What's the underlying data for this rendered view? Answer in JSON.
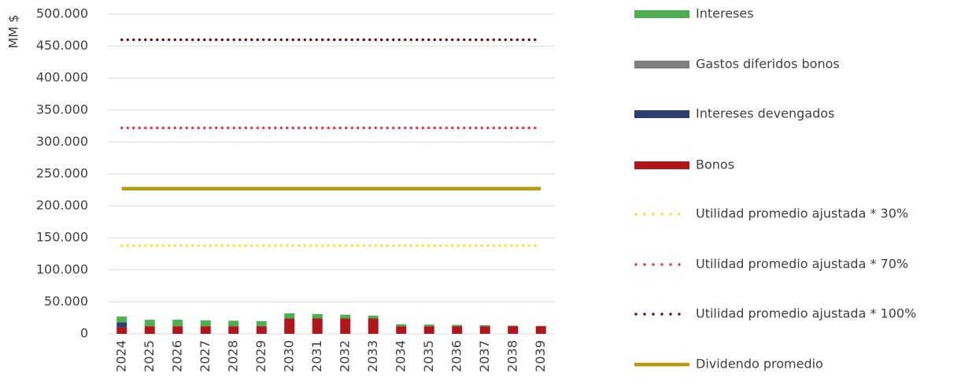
{
  "chart_data": {
    "type": "bar",
    "y_label": "MM $",
    "categories": [
      "2024",
      "2025",
      "2026",
      "2027",
      "2028",
      "2029",
      "2030",
      "2031",
      "2032",
      "2033",
      "2034",
      "2035",
      "2036",
      "2037",
      "2038",
      "2039"
    ],
    "ylim": [
      0,
      500000
    ],
    "yticks": [
      0,
      {
        "value": 50000,
        "label": "50.000"
      },
      {
        "value": 100000,
        "label": "100.000"
      },
      {
        "value": 150000,
        "label": "150.000"
      },
      {
        "value": 200000,
        "label": "200.000"
      },
      {
        "value": 250000,
        "label": "250.000"
      },
      {
        "value": 300000,
        "label": "300.000"
      },
      {
        "value": 350000,
        "label": "350.000"
      },
      {
        "value": 400000,
        "label": "400.000"
      },
      {
        "value": 450000,
        "label": "450.000"
      },
      {
        "value": 500000,
        "label": "500.000"
      }
    ],
    "grid": true,
    "legend": "right",
    "stacked": true,
    "series": [
      {
        "name": "Intereses",
        "type": "bar",
        "color": "#4cb050",
        "values": [
          9000,
          10000,
          10000,
          9000,
          8500,
          8000,
          8000,
          7000,
          6000,
          4500,
          3000,
          2500,
          2000,
          1500,
          1000,
          500
        ]
      },
      {
        "name": "Gastos diferidos bonos",
        "type": "bar",
        "color": "#808080",
        "values": [
          0,
          0,
          0,
          0,
          0,
          0,
          0,
          0,
          0,
          0,
          0,
          0,
          0,
          0,
          0,
          0
        ]
      },
      {
        "name": "Intereses devengados",
        "type": "bar",
        "color": "#2e3f6e",
        "values": [
          8000,
          0,
          0,
          0,
          0,
          0,
          0,
          0,
          0,
          0,
          0,
          0,
          0,
          0,
          0,
          0
        ]
      },
      {
        "name": "Bonos",
        "type": "bar",
        "color": "#b0161c",
        "values": [
          10000,
          12000,
          12000,
          12000,
          12000,
          12000,
          24000,
          24000,
          24000,
          24000,
          12000,
          12000,
          12000,
          12000,
          12000,
          12000
        ]
      },
      {
        "name": "Utilidad promedio ajustada * 30%",
        "type": "line",
        "dash": "dotted",
        "color": "#f5e03a",
        "values": [
          138000,
          138000,
          138000,
          138000,
          138000,
          138000,
          138000,
          138000,
          138000,
          138000,
          138000,
          138000,
          138000,
          138000,
          138000,
          138000
        ]
      },
      {
        "name": "Utilidad promedio ajustada * 70%",
        "type": "line",
        "dash": "dotted",
        "color": "#e8384f",
        "values": [
          322000,
          322000,
          322000,
          322000,
          322000,
          322000,
          322000,
          322000,
          322000,
          322000,
          322000,
          322000,
          322000,
          322000,
          322000,
          322000
        ]
      },
      {
        "name": "Utilidad promedio ajustada * 100%",
        "type": "line",
        "dash": "dotted",
        "color": "#6b0f1a",
        "values": [
          460000,
          460000,
          460000,
          460000,
          460000,
          460000,
          460000,
          460000,
          460000,
          460000,
          460000,
          460000,
          460000,
          460000,
          460000,
          460000
        ]
      },
      {
        "name": "Dividendo promedio",
        "type": "line",
        "dash": "solid",
        "color": "#b59a0c",
        "values": [
          227000,
          227000,
          227000,
          227000,
          227000,
          227000,
          227000,
          227000,
          227000,
          227000,
          227000,
          227000,
          227000,
          227000,
          227000,
          227000
        ]
      }
    ]
  }
}
